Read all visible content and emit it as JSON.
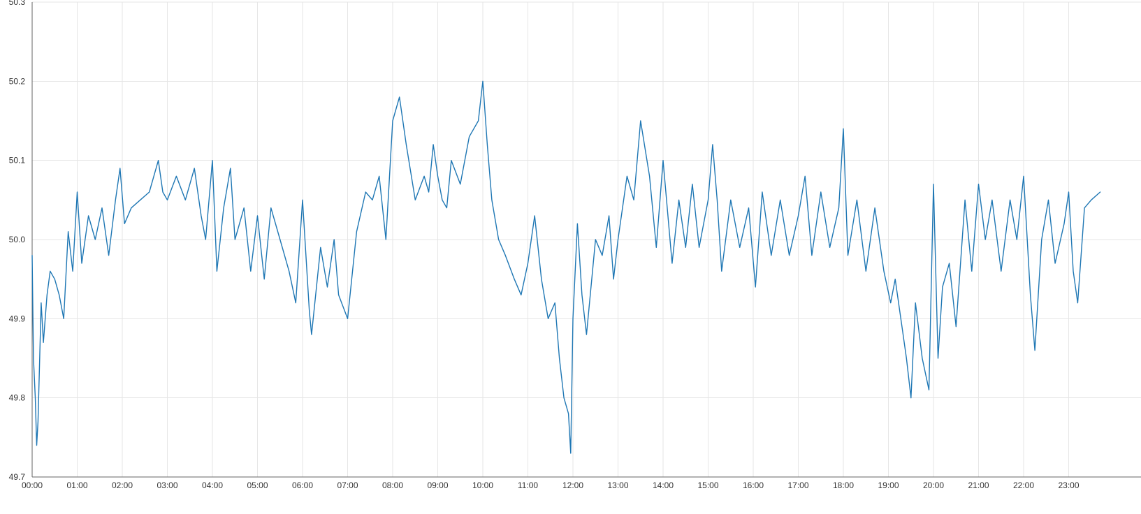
{
  "chart_data": {
    "type": "line",
    "title": "",
    "xlabel": "",
    "ylabel": "",
    "grid": true,
    "legend": "none",
    "xlim": [
      0,
      24
    ],
    "ylim": [
      49.7,
      50.3
    ],
    "x_ticks": [
      {
        "value": 0,
        "label": "00:00"
      },
      {
        "value": 1,
        "label": "01:00"
      },
      {
        "value": 2,
        "label": "02:00"
      },
      {
        "value": 3,
        "label": "03:00"
      },
      {
        "value": 4,
        "label": "04:00"
      },
      {
        "value": 5,
        "label": "05:00"
      },
      {
        "value": 6,
        "label": "06:00"
      },
      {
        "value": 7,
        "label": "07:00"
      },
      {
        "value": 8,
        "label": "08:00"
      },
      {
        "value": 9,
        "label": "09:00"
      },
      {
        "value": 10,
        "label": "10:00"
      },
      {
        "value": 11,
        "label": "11:00"
      },
      {
        "value": 12,
        "label": "12:00"
      },
      {
        "value": 13,
        "label": "13:00"
      },
      {
        "value": 14,
        "label": "14:00"
      },
      {
        "value": 15,
        "label": "15:00"
      },
      {
        "value": 16,
        "label": "16:00"
      },
      {
        "value": 17,
        "label": "17:00"
      },
      {
        "value": 18,
        "label": "18:00"
      },
      {
        "value": 19,
        "label": "19:00"
      },
      {
        "value": 20,
        "label": "20:00"
      },
      {
        "value": 21,
        "label": "21:00"
      },
      {
        "value": 22,
        "label": "22:00"
      },
      {
        "value": 23,
        "label": "23:00"
      }
    ],
    "y_ticks": [
      {
        "value": 49.7,
        "label": "49.7"
      },
      {
        "value": 49.8,
        "label": "49.8"
      },
      {
        "value": 49.9,
        "label": "49.9"
      },
      {
        "value": 50.0,
        "label": "50.0"
      },
      {
        "value": 50.1,
        "label": "50.1"
      },
      {
        "value": 50.2,
        "label": "50.2"
      },
      {
        "value": 50.3,
        "label": "50.3"
      }
    ],
    "series": [
      {
        "color": "#1f77b4",
        "x": [
          0.0,
          0.03,
          0.07,
          0.1,
          0.13,
          0.2,
          0.25,
          0.33,
          0.4,
          0.5,
          0.6,
          0.7,
          0.8,
          0.9,
          1.0,
          1.1,
          1.25,
          1.4,
          1.55,
          1.7,
          1.85,
          1.95,
          2.05,
          2.2,
          2.4,
          2.6,
          2.8,
          2.9,
          3.0,
          3.2,
          3.4,
          3.6,
          3.75,
          3.85,
          4.0,
          4.1,
          4.25,
          4.4,
          4.5,
          4.7,
          4.85,
          5.0,
          5.15,
          5.3,
          5.5,
          5.7,
          5.85,
          6.0,
          6.15,
          6.2,
          6.4,
          6.55,
          6.7,
          6.8,
          7.0,
          7.2,
          7.4,
          7.55,
          7.7,
          7.85,
          8.0,
          8.15,
          8.3,
          8.5,
          8.7,
          8.8,
          8.9,
          9.0,
          9.1,
          9.2,
          9.3,
          9.5,
          9.7,
          9.9,
          10.0,
          10.1,
          10.2,
          10.35,
          10.5,
          10.7,
          10.85,
          11.0,
          11.15,
          11.3,
          11.45,
          11.6,
          11.7,
          11.8,
          11.9,
          11.95,
          12.0,
          12.1,
          12.2,
          12.3,
          12.5,
          12.65,
          12.8,
          12.9,
          13.0,
          13.2,
          13.35,
          13.5,
          13.7,
          13.85,
          14.0,
          14.2,
          14.35,
          14.5,
          14.65,
          14.8,
          15.0,
          15.1,
          15.2,
          15.3,
          15.5,
          15.7,
          15.9,
          16.05,
          16.2,
          16.4,
          16.6,
          16.8,
          17.0,
          17.15,
          17.3,
          17.5,
          17.7,
          17.9,
          18.0,
          18.1,
          18.3,
          18.5,
          18.7,
          18.9,
          19.05,
          19.15,
          19.3,
          19.4,
          19.5,
          19.6,
          19.75,
          19.9,
          20.0,
          20.1,
          20.2,
          20.35,
          20.5,
          20.7,
          20.85,
          21.0,
          21.15,
          21.3,
          21.5,
          21.7,
          21.85,
          22.0,
          22.15,
          22.25,
          22.4,
          22.55,
          22.7,
          22.9,
          23.0,
          23.1,
          23.2,
          23.35,
          23.5,
          23.7
        ],
        "y": [
          49.98,
          49.85,
          49.8,
          49.74,
          49.77,
          49.92,
          49.87,
          49.93,
          49.96,
          49.95,
          49.93,
          49.9,
          50.01,
          49.96,
          50.06,
          49.97,
          50.03,
          50.0,
          50.04,
          49.98,
          50.05,
          50.09,
          50.02,
          50.04,
          50.05,
          50.06,
          50.1,
          50.06,
          50.05,
          50.08,
          50.05,
          50.09,
          50.03,
          50.0,
          50.1,
          49.96,
          50.04,
          50.09,
          50.0,
          50.04,
          49.96,
          50.03,
          49.95,
          50.04,
          50.0,
          49.96,
          49.92,
          50.05,
          49.91,
          49.88,
          49.99,
          49.94,
          50.0,
          49.93,
          49.9,
          50.01,
          50.06,
          50.05,
          50.08,
          50.0,
          50.15,
          50.18,
          50.12,
          50.05,
          50.08,
          50.06,
          50.12,
          50.08,
          50.05,
          50.04,
          50.1,
          50.07,
          50.13,
          50.15,
          50.2,
          50.12,
          50.05,
          50.0,
          49.98,
          49.95,
          49.93,
          49.97,
          50.03,
          49.95,
          49.9,
          49.92,
          49.85,
          49.8,
          49.78,
          49.73,
          49.9,
          50.02,
          49.93,
          49.88,
          50.0,
          49.98,
          50.03,
          49.95,
          50.0,
          50.08,
          50.05,
          50.15,
          50.08,
          49.99,
          50.1,
          49.97,
          50.05,
          49.99,
          50.07,
          49.99,
          50.05,
          50.12,
          50.05,
          49.96,
          50.05,
          49.99,
          50.04,
          49.94,
          50.06,
          49.98,
          50.05,
          49.98,
          50.03,
          50.08,
          49.98,
          50.06,
          49.99,
          50.04,
          50.14,
          49.98,
          50.05,
          49.96,
          50.04,
          49.96,
          49.92,
          49.95,
          49.89,
          49.85,
          49.8,
          49.92,
          49.85,
          49.81,
          50.07,
          49.85,
          49.94,
          49.97,
          49.89,
          50.05,
          49.96,
          50.07,
          50.0,
          50.05,
          49.96,
          50.05,
          50.0,
          50.08,
          49.93,
          49.86,
          50.0,
          50.05,
          49.97,
          50.02,
          50.06,
          49.96,
          49.92,
          50.04,
          50.05,
          50.06
        ]
      }
    ]
  }
}
